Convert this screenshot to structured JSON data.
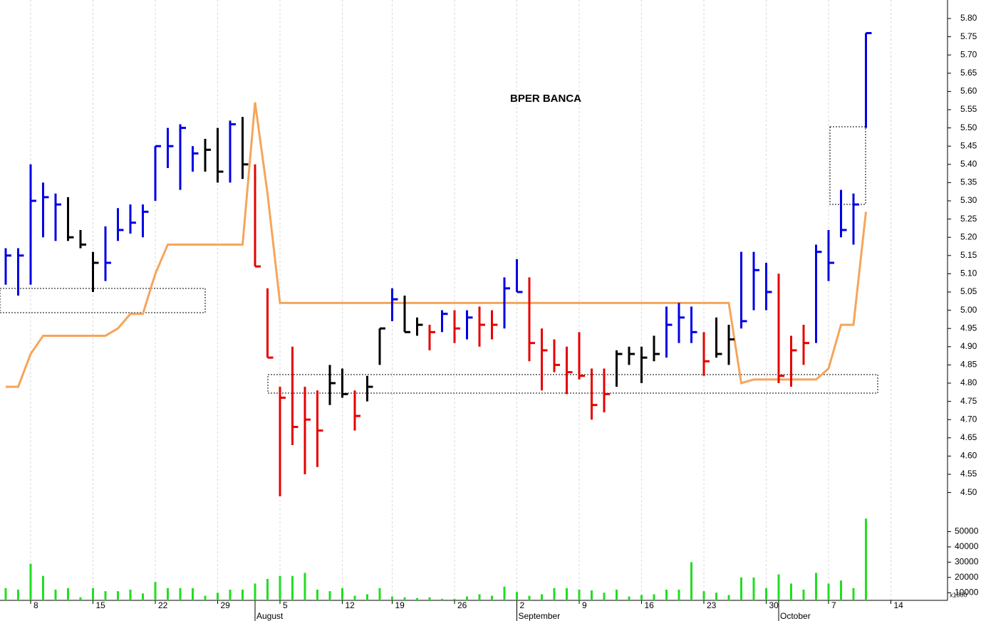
{
  "chart_data": {
    "type": "hlc",
    "title": "BPER BANCA",
    "categories": [
      null,
      null,
      "8",
      null,
      null,
      null,
      null,
      "15",
      null,
      null,
      null,
      null,
      "22",
      null,
      null,
      null,
      null,
      "29",
      null,
      null,
      null,
      null,
      "5",
      null,
      null,
      null,
      null,
      "12",
      null,
      null,
      null,
      "19",
      null,
      null,
      null,
      null,
      "26",
      null,
      null,
      null,
      null,
      "2",
      null,
      null,
      null,
      null,
      "9",
      null,
      null,
      null,
      null,
      "16",
      null,
      null,
      null,
      null,
      "23",
      null,
      null,
      null,
      null,
      "30",
      null,
      null,
      null,
      null,
      "7",
      null,
      null,
      null,
      null,
      "14"
    ],
    "month_labels": [
      null,
      null,
      null,
      null,
      null,
      null,
      null,
      null,
      null,
      null,
      null,
      null,
      null,
      null,
      null,
      null,
      null,
      null,
      null,
      null,
      "August",
      null,
      null,
      null,
      null,
      null,
      null,
      null,
      null,
      null,
      null,
      null,
      null,
      null,
      null,
      null,
      null,
      null,
      null,
      null,
      null,
      "September",
      null,
      null,
      null,
      null,
      null,
      null,
      null,
      null,
      null,
      null,
      null,
      null,
      null,
      null,
      null,
      null,
      null,
      null,
      null,
      null,
      "October",
      null,
      null,
      null,
      null,
      null,
      null,
      null,
      null,
      null
    ],
    "high": [
      5.17,
      5.17,
      5.4,
      5.35,
      5.32,
      5.31,
      5.22,
      5.16,
      5.23,
      5.28,
      5.29,
      5.29,
      5.45,
      5.5,
      5.51,
      5.45,
      5.47,
      5.5,
      5.52,
      5.53,
      5.4,
      5.06,
      4.79,
      4.9,
      4.79,
      4.78,
      4.85,
      4.84,
      4.78,
      4.82,
      4.95,
      5.06,
      5.04,
      4.98,
      4.96,
      5.0,
      5.0,
      5.0,
      5.01,
      5.0,
      5.09,
      5.14,
      5.09,
      4.95,
      4.92,
      4.9,
      4.94,
      4.84,
      4.84,
      4.89,
      4.9,
      4.9,
      4.93,
      5.01,
      5.02,
      5.01,
      4.94,
      4.98,
      4.96,
      5.16,
      5.16,
      5.13,
      5.1,
      4.93,
      4.96,
      5.18,
      5.22,
      5.33,
      5.32,
      5.76,
      null,
      null
    ],
    "low": [
      5.07,
      5.04,
      5.07,
      5.2,
      5.19,
      5.19,
      5.17,
      5.05,
      5.08,
      5.19,
      5.21,
      5.2,
      5.3,
      5.39,
      5.33,
      5.38,
      5.38,
      5.35,
      5.35,
      5.36,
      5.12,
      4.87,
      4.49,
      4.63,
      4.55,
      4.57,
      4.74,
      4.76,
      4.67,
      4.75,
      4.85,
      4.97,
      4.94,
      4.93,
      4.89,
      4.94,
      4.91,
      4.92,
      4.9,
      4.92,
      4.95,
      5.05,
      4.86,
      4.78,
      4.83,
      4.77,
      4.81,
      4.7,
      4.72,
      4.79,
      4.85,
      4.8,
      4.86,
      4.87,
      4.91,
      4.91,
      4.82,
      4.87,
      4.85,
      4.95,
      5.0,
      5.0,
      4.8,
      4.79,
      4.85,
      4.91,
      5.08,
      5.2,
      5.18,
      5.5,
      null,
      null
    ],
    "close": [
      5.15,
      5.15,
      5.3,
      5.31,
      5.29,
      5.2,
      5.18,
      5.13,
      5.13,
      5.22,
      5.24,
      5.27,
      5.45,
      5.45,
      5.5,
      5.43,
      5.44,
      5.38,
      5.51,
      5.4,
      5.12,
      4.87,
      4.76,
      4.68,
      4.7,
      4.67,
      4.8,
      4.77,
      4.71,
      4.79,
      4.95,
      5.03,
      4.94,
      4.96,
      4.94,
      4.99,
      4.95,
      4.98,
      4.96,
      4.96,
      5.06,
      5.05,
      4.91,
      4.89,
      4.85,
      4.83,
      4.82,
      4.74,
      4.77,
      4.88,
      4.88,
      4.87,
      4.88,
      4.96,
      4.98,
      4.94,
      4.86,
      4.88,
      4.92,
      4.97,
      5.11,
      5.05,
      4.82,
      4.89,
      4.91,
      5.16,
      5.13,
      5.22,
      5.29,
      5.76,
      null,
      null
    ],
    "bar_colors": [
      "#0000e6",
      "#0000e6",
      "#0000e6",
      "#0000e6",
      "#0000e6",
      "#000000",
      "#000000",
      "#000000",
      "#0000e6",
      "#0000e6",
      "#0000e6",
      "#0000e6",
      "#0000e6",
      "#0000e6",
      "#0000e6",
      "#0000e6",
      "#000000",
      "#000000",
      "#0000e6",
      "#000000",
      "#e60000",
      "#e60000",
      "#e60000",
      "#e60000",
      "#e60000",
      "#e60000",
      "#000000",
      "#000000",
      "#e60000",
      "#000000",
      "#000000",
      "#0000e6",
      "#000000",
      "#000000",
      "#e60000",
      "#0000e6",
      "#e60000",
      "#0000e6",
      "#e60000",
      "#e60000",
      "#0000e6",
      "#0000e6",
      "#e60000",
      "#e60000",
      "#e60000",
      "#e60000",
      "#e60000",
      "#e60000",
      "#e60000",
      "#000000",
      "#000000",
      "#000000",
      "#000000",
      "#0000e6",
      "#0000e6",
      "#0000e6",
      "#e60000",
      "#000000",
      "#000000",
      "#0000e6",
      "#0000e6",
      "#0000e6",
      "#e60000",
      "#e60000",
      "#e60000",
      "#0000e6",
      "#0000e6",
      "#0000e6",
      "#0000e6",
      "#0000e6",
      null,
      null
    ],
    "ylim": [
      4.45,
      5.85
    ],
    "yticks": [
      {
        "value": 4.5,
        "label": "4.50"
      },
      4.55,
      {
        "value": 4.6,
        "label": "4.60"
      },
      4.65,
      {
        "value": 4.7,
        "label": "4.70"
      },
      4.75,
      {
        "value": 4.8,
        "label": "4.80"
      },
      4.85,
      {
        "value": 4.9,
        "label": "4.90"
      },
      4.95,
      {
        "value": 5,
        "label": "5.00"
      },
      5.05,
      {
        "value": 5.1,
        "label": "5.10"
      },
      5.15,
      {
        "value": 5.2,
        "label": "5.20"
      },
      5.25,
      {
        "value": 5.3,
        "label": "5.30"
      },
      5.35,
      {
        "value": 5.4,
        "label": "5.40"
      },
      5.45,
      {
        "value": 5.5,
        "label": "5.50"
      },
      5.55,
      {
        "value": 5.6,
        "label": "5.60"
      },
      5.65,
      {
        "value": 5.7,
        "label": "5.70"
      },
      5.75,
      {
        "value": 5.8,
        "label": "5.80"
      }
    ],
    "stop_line": {
      "color": "#f5a55a",
      "values": [
        4.79,
        4.79,
        4.88,
        4.93,
        4.93,
        4.93,
        4.93,
        4.93,
        4.93,
        4.95,
        4.99,
        4.99,
        5.1,
        5.18,
        5.18,
        5.18,
        5.18,
        5.18,
        5.18,
        5.18,
        5.57,
        5.32,
        5.02,
        5.02,
        5.02,
        5.02,
        5.02,
        5.02,
        5.02,
        5.02,
        5.02,
        5.02,
        5.02,
        5.02,
        5.02,
        5.02,
        5.02,
        5.02,
        5.02,
        5.02,
        5.02,
        5.02,
        5.02,
        5.02,
        5.02,
        5.02,
        5.02,
        5.02,
        5.02,
        5.02,
        5.02,
        5.02,
        5.02,
        5.02,
        5.02,
        5.02,
        5.02,
        5.02,
        5.02,
        4.8,
        4.81,
        4.81,
        4.81,
        4.81,
        4.81,
        4.81,
        4.84,
        4.96,
        4.96,
        5.27,
        null,
        null
      ]
    },
    "volume": {
      "color": "#22dd22",
      "unit_label": "x1000",
      "values": [
        13000,
        12000,
        29000,
        21000,
        12000,
        13000,
        7000,
        13000,
        11000,
        11000,
        12000,
        9500,
        17000,
        13000,
        13000,
        13000,
        8000,
        10000,
        12000,
        12000,
        16000,
        19000,
        21000,
        21000,
        23000,
        12000,
        11000,
        13000,
        8000,
        9000,
        13000,
        7500,
        7000,
        6500,
        7000,
        6000,
        6000,
        7500,
        9000,
        8000,
        14000,
        10500,
        8000,
        9000,
        13000,
        13000,
        12000,
        11500,
        10000,
        12000,
        7500,
        8500,
        9000,
        12000,
        12000,
        30000,
        11000,
        10000,
        8500,
        20000,
        20000,
        13000,
        22000,
        16000,
        12000,
        23000,
        16000,
        18000,
        13000,
        58500,
        null,
        null
      ],
      "ylim": [
        5000,
        60000
      ],
      "yticks": [
        10000,
        20000,
        30000,
        40000,
        50000
      ]
    }
  }
}
